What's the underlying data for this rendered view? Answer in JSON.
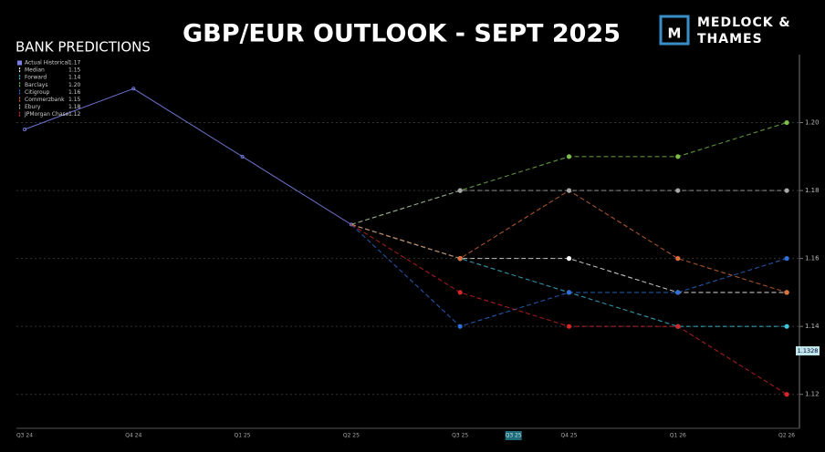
{
  "chart_data": {
    "type": "line",
    "title": "GBP/EUR OUTLOOK - SEPT 2025",
    "brand": "MEDLOCK & THAMES",
    "legend_title": "BANK PREDICTIONS",
    "categories": [
      "Q3 24",
      "Q4 24",
      "Q1 25",
      "Q2 25",
      "Q3 25",
      "Q4 25",
      "Q1 26",
      "Q2 26"
    ],
    "current_period": "Q3 25",
    "current_rate": 1.1328,
    "ylim": [
      1.11,
      1.22
    ],
    "yticks": [
      1.12,
      1.14,
      1.16,
      1.18,
      {
        "value": 1.2,
        "label": "1.20"
      }
    ],
    "grid": true,
    "series": [
      {
        "name": "Actual Historical",
        "color": "#7b80e6",
        "dashed": false,
        "legend_value": 1.17,
        "values": [
          1.198,
          1.21,
          1.19,
          1.17,
          null,
          null,
          null,
          null
        ]
      },
      {
        "name": "Median",
        "color": "#ffffff",
        "dashed": true,
        "legend_value": 1.15,
        "values": [
          null,
          null,
          null,
          1.17,
          1.16,
          1.16,
          1.15,
          1.15
        ]
      },
      {
        "name": "Forward",
        "color": "#3fc6e0",
        "dashed": true,
        "legend_value": 1.14,
        "values": [
          null,
          null,
          null,
          1.17,
          1.16,
          1.15,
          1.14,
          1.14
        ]
      },
      {
        "name": "Barclays",
        "color": "#7cc04a",
        "dashed": true,
        "legend_value": {
          "value": 1.2,
          "label": "1.20"
        },
        "values": [
          null,
          null,
          null,
          1.17,
          1.18,
          1.19,
          1.19,
          1.2
        ]
      },
      {
        "name": "Citigroup",
        "color": "#2f6fd8",
        "dashed": true,
        "legend_value": 1.16,
        "values": [
          null,
          null,
          null,
          1.17,
          1.14,
          1.15,
          1.15,
          1.16
        ]
      },
      {
        "name": "Commerzbank",
        "color": "#e0703a",
        "dashed": true,
        "legend_value": 1.15,
        "values": [
          null,
          null,
          null,
          1.17,
          1.16,
          1.18,
          1.16,
          1.15
        ]
      },
      {
        "name": "Ebury",
        "color": "#a8a8a8",
        "dashed": true,
        "legend_value": 1.18,
        "values": [
          null,
          null,
          null,
          1.17,
          1.18,
          1.18,
          1.18,
          1.18
        ]
      },
      {
        "name": "JPMorgan Chase",
        "color": "#d8262a",
        "dashed": true,
        "legend_value": 1.12,
        "values": [
          null,
          null,
          null,
          1.17,
          1.15,
          1.14,
          1.14,
          1.12
        ]
      }
    ]
  }
}
